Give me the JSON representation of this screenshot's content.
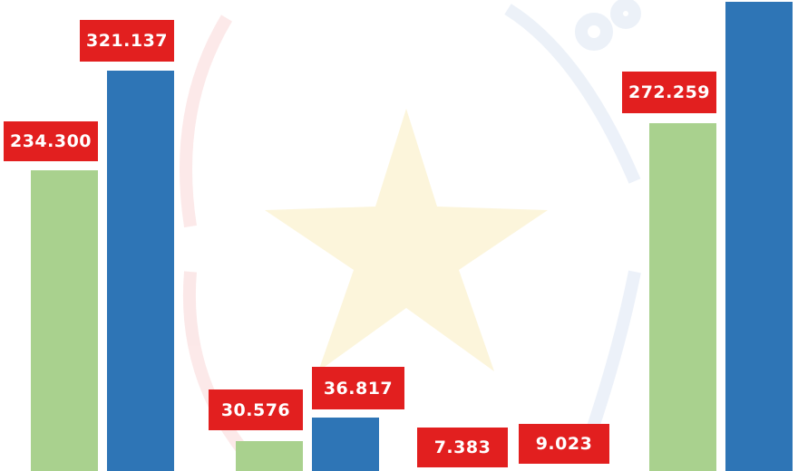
{
  "chart_data": {
    "type": "bar",
    "categories": [
      "",
      "",
      "",
      ""
    ],
    "series": [
      {
        "color": "#a9d18e",
        "values": [
          234.3,
          30.576,
          7.383,
          272.259
        ]
      },
      {
        "color": "#2e75b6",
        "values": [
          321.137,
          36.817,
          9.023,
          null
        ]
      }
    ],
    "data_labels": [
      [
        "234.300",
        "30.576",
        "7.383",
        "272.259"
      ],
      [
        "321.137",
        "36.817",
        "9.023",
        null
      ]
    ],
    "label_color": "#e21f1f",
    "grid": false,
    "title": "",
    "xlabel": "",
    "ylabel": ""
  }
}
